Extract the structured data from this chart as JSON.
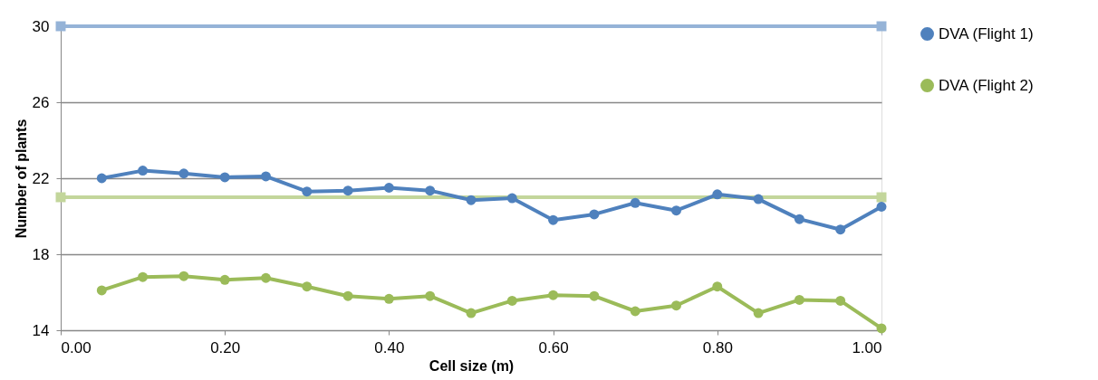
{
  "chart_data": {
    "type": "line",
    "xlabel": "Cell size (m)",
    "ylabel": "Number of plants",
    "xlim": [
      0,
      1
    ],
    "xticks": [
      {
        "value": 0,
        "label": "0.00"
      },
      {
        "value": 0.2,
        "label": "0.20"
      },
      {
        "value": 0.4,
        "label": "0.40"
      },
      {
        "value": 0.6,
        "label": "0.60"
      },
      {
        "value": 0.8,
        "label": "0.80"
      },
      {
        "value": 1,
        "label": "1.00"
      }
    ],
    "ylim": [
      14,
      30
    ],
    "yticks": [
      14,
      18,
      22,
      26,
      30
    ],
    "grid": "y",
    "legend": "right",
    "marker": "circle",
    "line_style": "solid",
    "series": [
      {
        "color": "#95b3d7",
        "marker": "square",
        "x": [
          0,
          1
        ],
        "values": [
          30,
          30
        ]
      },
      {
        "color": "#c3d69b",
        "marker": "square",
        "x": [
          0,
          1
        ],
        "values": [
          21,
          21
        ]
      },
      {
        "name": "DVA (Flight 1)",
        "color": "#4f81bd",
        "x": [
          0.05,
          0.1,
          0.15,
          0.2,
          0.25,
          0.3,
          0.35,
          0.4,
          0.45,
          0.5,
          0.55,
          0.6,
          0.65,
          0.7,
          0.75,
          0.8,
          0.85,
          0.9,
          0.95,
          1.0
        ],
        "values": [
          22.0,
          22.4,
          22.25,
          22.05,
          22.1,
          21.3,
          21.35,
          21.5,
          21.35,
          20.85,
          20.95,
          19.8,
          20.1,
          20.7,
          20.3,
          21.15,
          20.9,
          19.85,
          19.3,
          20.5
        ]
      },
      {
        "name": "DVA (Flight 2)",
        "color": "#9bbb59",
        "x": [
          0.05,
          0.1,
          0.15,
          0.2,
          0.25,
          0.3,
          0.35,
          0.4,
          0.45,
          0.5,
          0.55,
          0.6,
          0.65,
          0.7,
          0.75,
          0.8,
          0.85,
          0.9,
          0.95,
          1.0
        ],
        "values": [
          16.1,
          16.8,
          16.85,
          16.65,
          16.75,
          16.3,
          15.8,
          15.65,
          15.8,
          14.9,
          15.55,
          15.85,
          15.8,
          15.0,
          15.3,
          16.3,
          14.9,
          15.6,
          15.55,
          14.1
        ]
      }
    ]
  }
}
